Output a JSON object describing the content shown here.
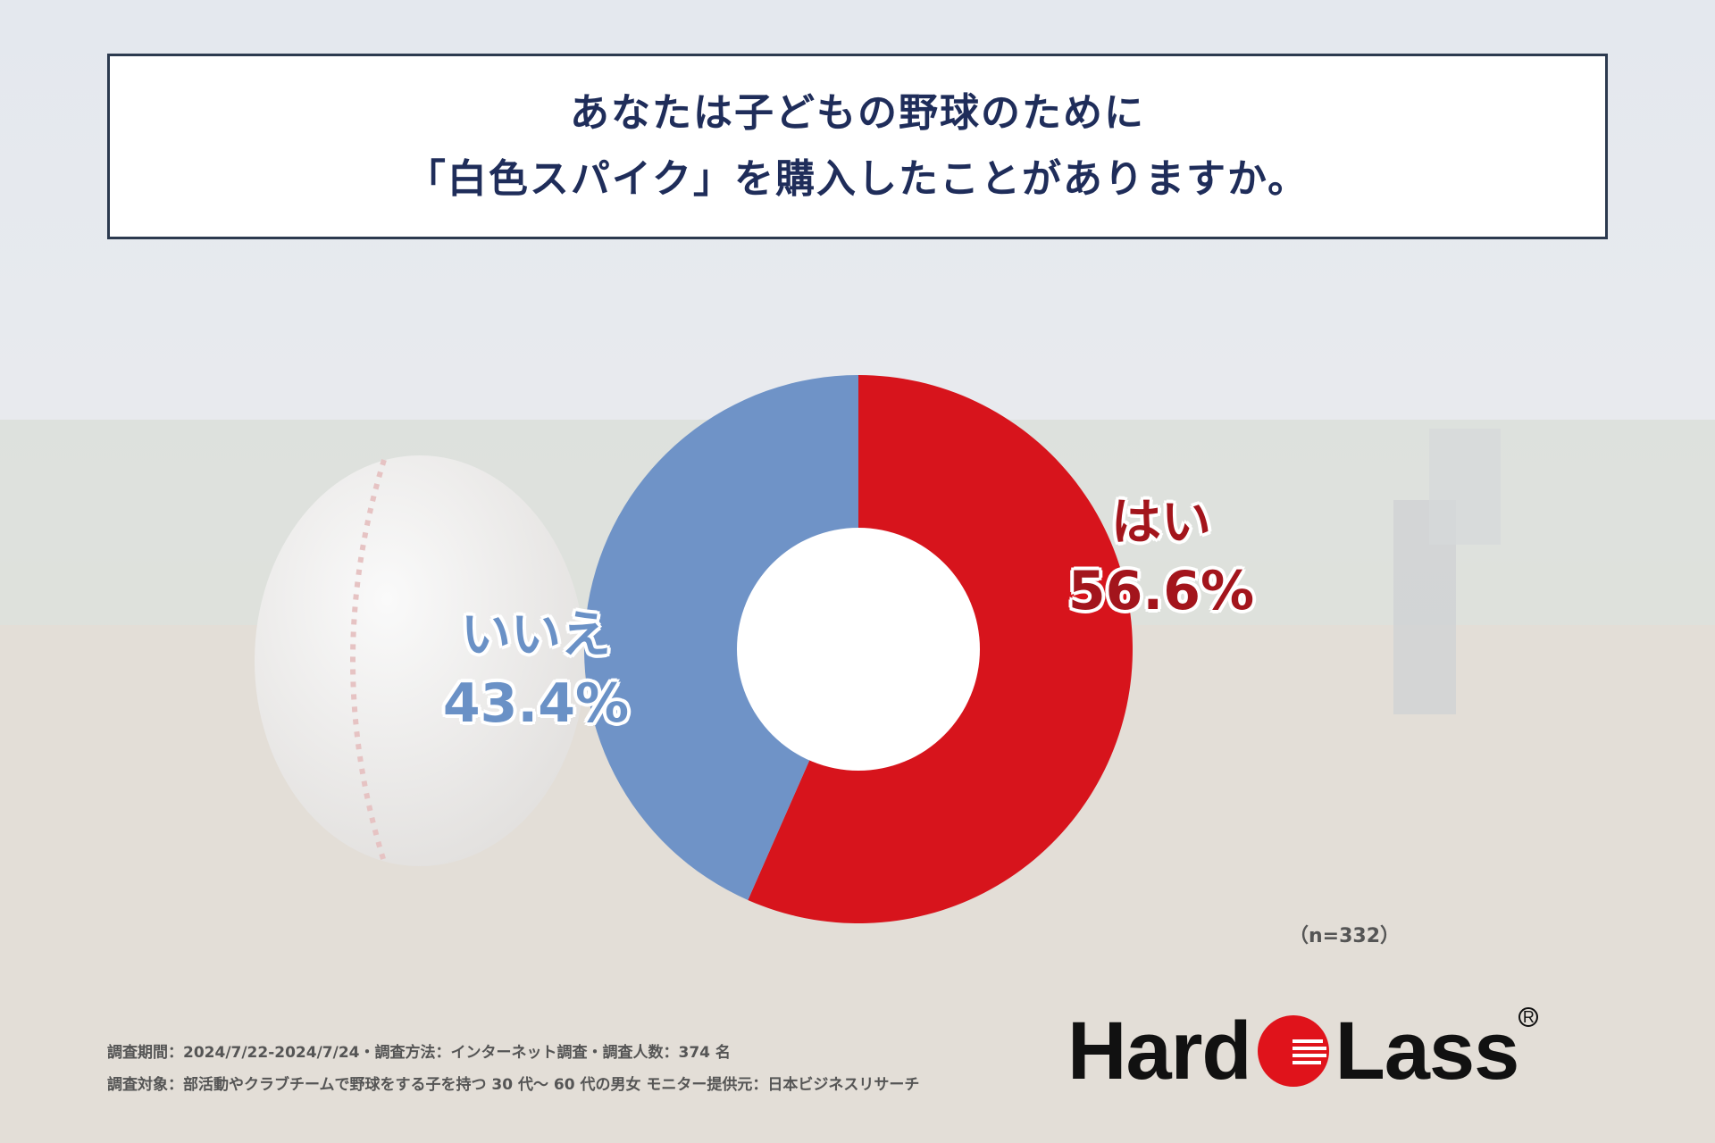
{
  "title": {
    "line1": "あなたは子どもの野球のために",
    "line2": "「白色スパイク」を購入したことがありますか。"
  },
  "chart_data": {
    "type": "pie",
    "donut": true,
    "slices": [
      {
        "name": "はい",
        "label": "56.6%",
        "value": 56.6,
        "color": "#d7141c"
      },
      {
        "name": "いいえ",
        "label": "43.4%",
        "value": 43.4,
        "color": "#6f93c7"
      }
    ],
    "start": "12 o'clock",
    "direction": "clockwise"
  },
  "sample_size": "（n=332）",
  "footnotes": {
    "line1": "調査期間：2024/7/22-2024/7/24・調査方法：インターネット調査・調査人数：374 名",
    "line2": "調査対象：部活動やクラブチームで野球をする子を持つ 30 代〜 60 代の男女 モニター提供元：日本ビジネスリサーチ"
  },
  "logo": {
    "left": "Hard",
    "right": "Lass",
    "reg": "R"
  }
}
